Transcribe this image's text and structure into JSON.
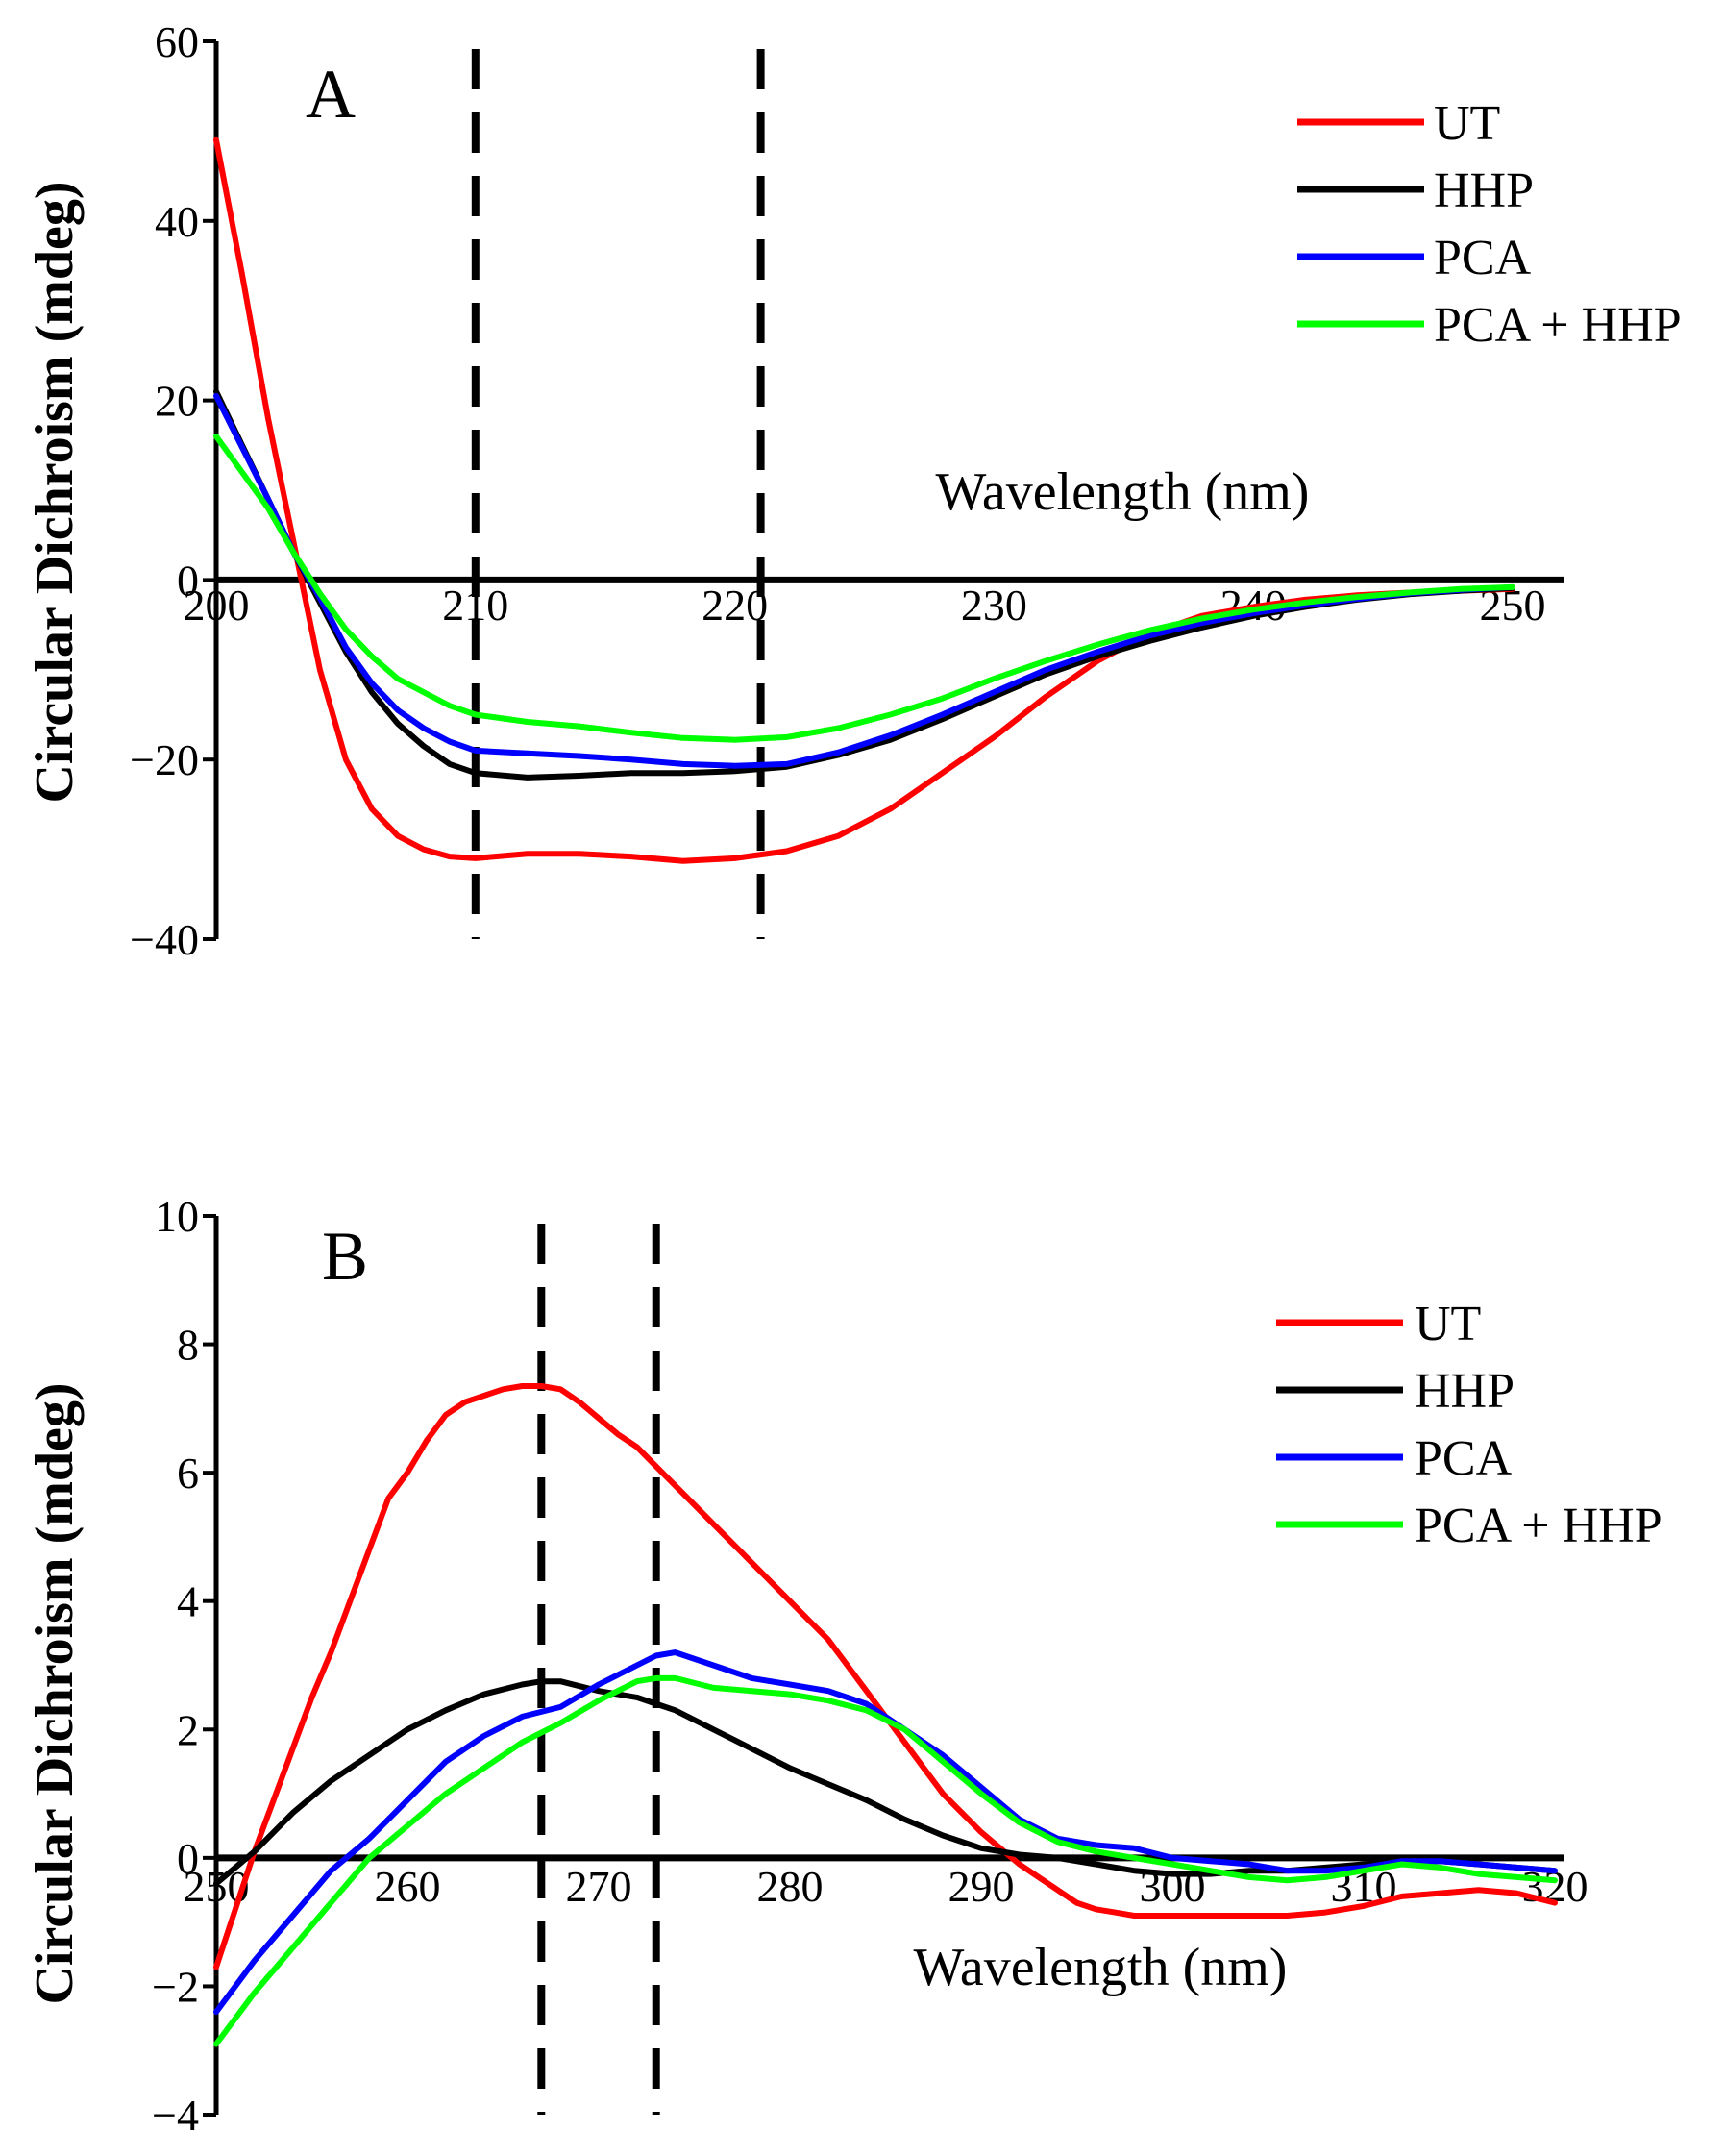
{
  "chart_data": [
    {
      "type": "line",
      "panel_label": "A",
      "xlabel": "Wavelength (nm)",
      "ylabel": "Circular Dichroism (mdeg)",
      "xlim": [
        200,
        252
      ],
      "ylim": [
        -40,
        60
      ],
      "xticks": [
        200,
        210,
        220,
        230,
        240,
        250
      ],
      "yticks": [
        60,
        40,
        20,
        0,
        -20,
        -40
      ],
      "ytick_labels": [
        "60",
        "40",
        "20",
        "0",
        "−20",
        "−40"
      ],
      "reference_lines": [
        210,
        221
      ],
      "legend_position": "top-right",
      "series": [
        {
          "name": "UT",
          "color": "#ff0000",
          "x": [
            200,
            201,
            202,
            203,
            204,
            205,
            206,
            207,
            208,
            209,
            210,
            212,
            214,
            216,
            218,
            220,
            222,
            224,
            226,
            228,
            230,
            232,
            234,
            236,
            238,
            240,
            242,
            244,
            246,
            248,
            250
          ],
          "y": [
            49,
            34,
            18,
            4,
            -10,
            -20,
            -25.5,
            -28.5,
            -30,
            -30.8,
            -31,
            -30.5,
            -30.5,
            -30.8,
            -31.3,
            -31,
            -30.2,
            -28.5,
            -25.5,
            -21.5,
            -17.5,
            -13,
            -9,
            -6,
            -4,
            -3,
            -2.2,
            -1.7,
            -1.4,
            -1.2,
            -1.0
          ]
        },
        {
          "name": "HHP",
          "color": "#000000",
          "x": [
            200,
            202,
            203,
            204,
            205,
            206,
            207,
            208,
            209,
            210,
            212,
            214,
            216,
            218,
            220,
            222,
            224,
            226,
            228,
            230,
            232,
            234,
            236,
            238,
            240,
            242,
            244,
            246,
            248,
            250
          ],
          "y": [
            21,
            9,
            3,
            -2.5,
            -8,
            -12.5,
            -16,
            -18.5,
            -20.5,
            -21.5,
            -22,
            -21.8,
            -21.5,
            -21.5,
            -21.3,
            -20.8,
            -19.5,
            -17.8,
            -15.5,
            -13,
            -10.5,
            -8.5,
            -6.8,
            -5.3,
            -4,
            -3,
            -2.2,
            -1.6,
            -1.2,
            -0.9
          ]
        },
        {
          "name": "PCA",
          "color": "#0000ff",
          "x": [
            200,
            202,
            203,
            204,
            205,
            206,
            207,
            208,
            209,
            210,
            212,
            214,
            216,
            218,
            220,
            222,
            224,
            226,
            228,
            230,
            232,
            234,
            236,
            238,
            240,
            242,
            244,
            246,
            248,
            250
          ],
          "y": [
            20.5,
            9,
            3,
            -2,
            -7.5,
            -11.5,
            -14.5,
            -16.5,
            -18,
            -19,
            -19.3,
            -19.6,
            -20,
            -20.5,
            -20.7,
            -20.5,
            -19.2,
            -17.3,
            -15,
            -12.5,
            -10,
            -8,
            -6.2,
            -4.8,
            -3.7,
            -2.8,
            -2.1,
            -1.5,
            -1.1,
            -0.8
          ]
        },
        {
          "name": "PCA + HHP",
          "color": "#00ff00",
          "x": [
            200,
            202,
            203,
            204,
            205,
            206,
            207,
            208,
            209,
            210,
            212,
            214,
            216,
            218,
            220,
            222,
            224,
            226,
            228,
            230,
            232,
            234,
            236,
            238,
            240,
            242,
            244,
            246,
            248,
            250
          ],
          "y": [
            16,
            8,
            3,
            -1.5,
            -5.5,
            -8.5,
            -11,
            -12.5,
            -14,
            -15,
            -15.8,
            -16.3,
            -17,
            -17.6,
            -17.8,
            -17.5,
            -16.5,
            -15,
            -13.2,
            -11,
            -9,
            -7.2,
            -5.6,
            -4.3,
            -3.3,
            -2.5,
            -1.9,
            -1.4,
            -1.0,
            -0.8
          ]
        }
      ]
    },
    {
      "type": "line",
      "panel_label": "B",
      "xlabel": "Wavelength (nm)",
      "ylabel": "Circular Dichroism (mdeg)",
      "xlim": [
        250,
        320.5
      ],
      "ylim": [
        -4,
        10
      ],
      "xticks": [
        250,
        260,
        270,
        280,
        290,
        300,
        310,
        320
      ],
      "yticks": [
        10,
        8,
        6,
        4,
        2,
        0,
        -2,
        -4
      ],
      "ytick_labels": [
        "10",
        "8",
        "6",
        "4",
        "2",
        "0",
        "−2",
        "−4"
      ],
      "reference_lines": [
        267,
        273
      ],
      "legend_position": "right",
      "series": [
        {
          "name": "UT",
          "color": "#ff0000",
          "x": [
            250,
            251,
            252,
            253,
            254,
            255,
            256,
            257,
            258,
            259,
            260,
            261,
            262,
            263,
            264,
            265,
            266,
            267,
            268,
            269,
            270,
            271,
            272,
            273,
            274,
            275,
            276,
            277,
            278,
            279,
            280,
            281,
            282,
            283,
            284,
            285,
            286,
            287,
            288,
            289,
            290,
            291,
            292,
            293,
            294,
            295,
            296,
            297,
            298,
            299,
            300,
            302,
            304,
            306,
            308,
            310,
            312,
            314,
            316,
            318,
            320
          ],
          "y": [
            -1.7,
            -0.8,
            0.1,
            0.9,
            1.7,
            2.5,
            3.2,
            4.0,
            4.8,
            5.6,
            6.0,
            6.5,
            6.9,
            7.1,
            7.2,
            7.3,
            7.35,
            7.35,
            7.3,
            7.1,
            6.85,
            6.6,
            6.4,
            6.1,
            5.8,
            5.5,
            5.2,
            4.9,
            4.6,
            4.3,
            4.0,
            3.7,
            3.4,
            3.0,
            2.6,
            2.2,
            1.8,
            1.4,
            1.0,
            0.7,
            0.4,
            0.15,
            -0.1,
            -0.3,
            -0.5,
            -0.7,
            -0.8,
            -0.85,
            -0.9,
            -0.9,
            -0.9,
            -0.9,
            -0.9,
            -0.9,
            -0.85,
            -0.75,
            -0.6,
            -0.55,
            -0.5,
            -0.55,
            -0.7
          ]
        },
        {
          "name": "HHP",
          "color": "#000000",
          "x": [
            250,
            252,
            254,
            256,
            258,
            260,
            262,
            264,
            266,
            267,
            268,
            270,
            272,
            273,
            274,
            276,
            278,
            280,
            282,
            284,
            286,
            288,
            290,
            292,
            294,
            296,
            298,
            300,
            302,
            304,
            306,
            308,
            310,
            312,
            314,
            316,
            318,
            320
          ],
          "y": [
            -0.4,
            0.1,
            0.7,
            1.2,
            1.6,
            2.0,
            2.3,
            2.55,
            2.7,
            2.75,
            2.75,
            2.6,
            2.5,
            2.4,
            2.3,
            2.0,
            1.7,
            1.4,
            1.15,
            0.9,
            0.6,
            0.35,
            0.15,
            0.05,
            0.0,
            -0.1,
            -0.2,
            -0.25,
            -0.25,
            -0.2,
            -0.2,
            -0.15,
            -0.1,
            -0.05,
            -0.05,
            -0.1,
            -0.15,
            -0.2
          ]
        },
        {
          "name": "PCA",
          "color": "#0000ff",
          "x": [
            250,
            252,
            254,
            256,
            258,
            260,
            262,
            264,
            266,
            268,
            270,
            272,
            273,
            274,
            276,
            278,
            280,
            282,
            284,
            286,
            288,
            290,
            292,
            294,
            296,
            298,
            300,
            302,
            304,
            306,
            308,
            310,
            312,
            314,
            316,
            318,
            320
          ],
          "y": [
            -2.4,
            -1.6,
            -0.9,
            -0.2,
            0.3,
            0.9,
            1.5,
            1.9,
            2.2,
            2.35,
            2.7,
            3.0,
            3.15,
            3.2,
            3.0,
            2.8,
            2.7,
            2.6,
            2.4,
            2.0,
            1.6,
            1.1,
            0.6,
            0.3,
            0.2,
            0.15,
            0.0,
            -0.05,
            -0.1,
            -0.2,
            -0.2,
            -0.15,
            -0.05,
            -0.05,
            -0.1,
            -0.15,
            -0.2
          ]
        },
        {
          "name": "PCA + HHP",
          "color": "#00ff00",
          "x": [
            250,
            252,
            254,
            256,
            258,
            260,
            262,
            264,
            266,
            268,
            270,
            272,
            273,
            274,
            276,
            278,
            280,
            282,
            284,
            286,
            288,
            290,
            292,
            294,
            296,
            298,
            300,
            302,
            304,
            306,
            308,
            310,
            312,
            314,
            316,
            318,
            320
          ],
          "y": [
            -2.9,
            -2.1,
            -1.4,
            -0.7,
            0.0,
            0.5,
            1.0,
            1.4,
            1.8,
            2.1,
            2.45,
            2.75,
            2.8,
            2.8,
            2.65,
            2.6,
            2.55,
            2.45,
            2.3,
            2.0,
            1.5,
            1.0,
            0.55,
            0.25,
            0.1,
            0.0,
            -0.1,
            -0.2,
            -0.3,
            -0.35,
            -0.3,
            -0.2,
            -0.1,
            -0.15,
            -0.25,
            -0.3,
            -0.35
          ]
        }
      ]
    }
  ]
}
